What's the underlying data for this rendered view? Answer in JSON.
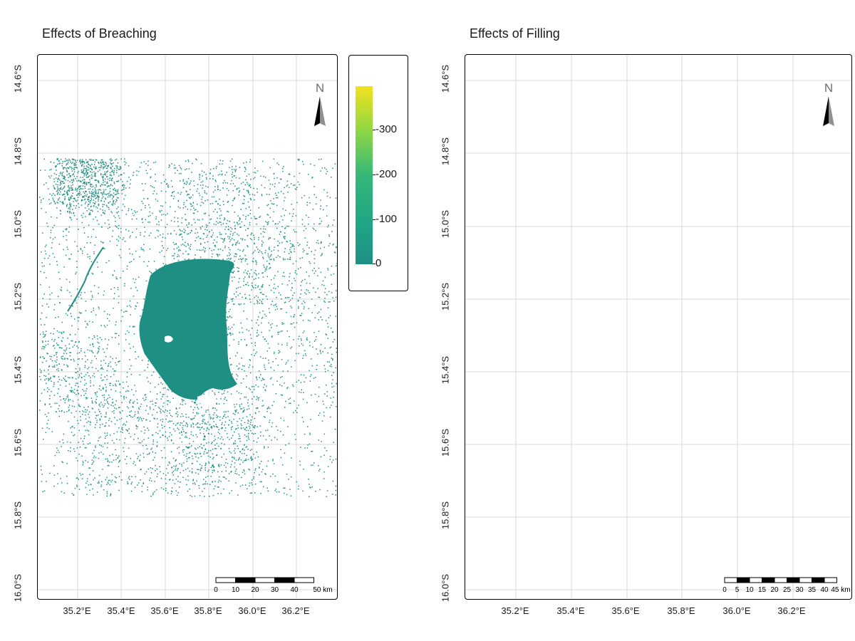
{
  "panels": [
    {
      "title": "Effects of Breaching",
      "lat_labels": [
        "14.6°S",
        "14.8°S",
        "15.0°S",
        "15.2°S",
        "15.4°S",
        "15.6°S",
        "15.8°S",
        "16.0°S"
      ],
      "lon_labels": [
        "35.2°E",
        "35.4°E",
        "35.6°E",
        "35.8°E",
        "36.0°E",
        "36.2°E"
      ],
      "north_label": "N",
      "scalebar_ticks": [
        "0",
        "10",
        "20",
        "30",
        "40",
        "50 km"
      ]
    },
    {
      "title": "Effects of Filling",
      "lat_labels": [
        "14.6°S",
        "14.8°S",
        "15.0°S",
        "15.2°S",
        "15.4°S",
        "15.6°S",
        "15.8°S",
        "16.0°S"
      ],
      "lon_labels": [
        "35.2°E",
        "35.4°E",
        "35.6°E",
        "35.8°E",
        "36.0°E",
        "36.2°E"
      ],
      "north_label": "N",
      "scalebar_ticks": [
        "0",
        "5",
        "10",
        "15",
        "20",
        "25",
        "30",
        "35",
        "40",
        "45 km"
      ]
    }
  ],
  "legend": {
    "ticks": [
      "-300",
      "-200",
      "-100",
      "0"
    ],
    "color_top": "#f2e21e",
    "color_mid": "#21b26f",
    "color_bottom": "#1f8f84"
  },
  "colors": {
    "raster": "#1f8f84",
    "grid": "#d9d9d9"
  }
}
